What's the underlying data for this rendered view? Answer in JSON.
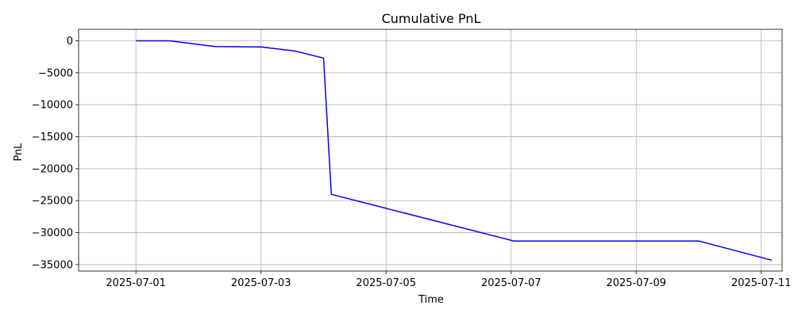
{
  "chart_data": {
    "type": "line",
    "title": "Cumulative PnL",
    "xlabel": "Time",
    "ylabel": "PnL",
    "xlim": [
      "2025-06-30T02:00",
      "2025-07-11T08:00"
    ],
    "ylim": [
      -36000,
      1800
    ],
    "grid": true,
    "x_ticks": [
      "2025-07-01",
      "2025-07-03",
      "2025-07-05",
      "2025-07-07",
      "2025-07-09",
      "2025-07-11"
    ],
    "y_ticks": [
      0,
      -5000,
      -10000,
      -15000,
      -20000,
      -25000,
      -30000,
      -35000
    ],
    "series": [
      {
        "color": "#0000ff",
        "x": [
          "2025-07-01T00:00",
          "2025-07-01T13:00",
          "2025-07-02T06:30",
          "2025-07-03T00:00",
          "2025-07-03T13:00",
          "2025-07-04T00:00",
          "2025-07-04T03:00",
          "2025-07-07T01:00",
          "2025-07-10T00:00",
          "2025-07-11T04:00"
        ],
        "y": [
          0,
          0,
          -900,
          -950,
          -1600,
          -2700,
          -24000,
          -31300,
          -31300,
          -34300
        ]
      }
    ]
  }
}
